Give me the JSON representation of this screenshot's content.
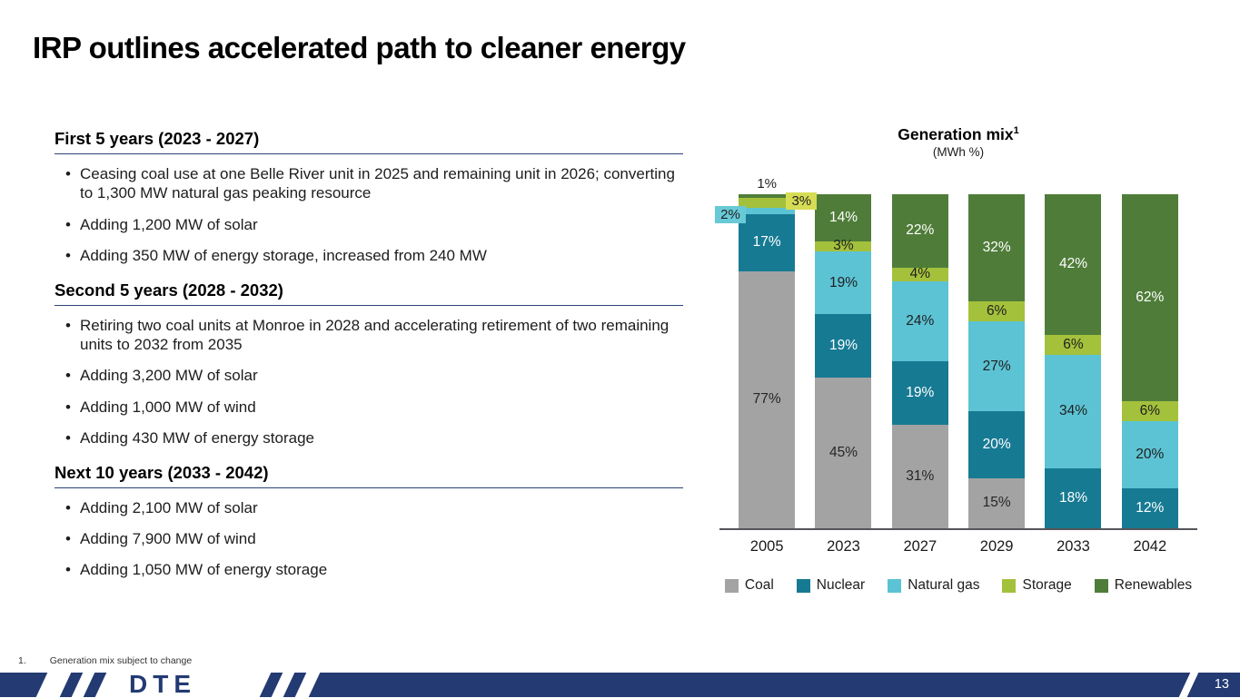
{
  "slide": {
    "title": "IRP outlines accelerated path to cleaner energy",
    "footnote_number": "1.",
    "footnote_text": "Generation mix subject to change",
    "logo_text": "DTE",
    "page_number": "13"
  },
  "sections": [
    {
      "heading": "First 5 years (2023 - 2027)",
      "bullets": [
        "Ceasing coal use at one Belle River unit in 2025 and remaining unit in 2026; converting to 1,300 MW natural gas peaking resource",
        "Adding 1,200 MW of solar",
        "Adding 350 MW of energy storage, increased from 240 MW"
      ]
    },
    {
      "heading": "Second 5 years (2028 - 2032)",
      "bullets": [
        "Retiring two coal units at Monroe in 2028 and accelerating retirement of two remaining units to 2032 from 2035",
        "Adding 3,200 MW of solar",
        "Adding 1,000 MW of wind",
        "Adding 430 MW of energy storage"
      ]
    },
    {
      "heading": "Next 10 years (2033 - 2042)",
      "bullets": [
        "Adding 2,100 MW of solar",
        "Adding 7,900 MW of wind",
        "Adding 1,050 MW of energy storage"
      ]
    }
  ],
  "chart_data": {
    "type": "bar",
    "stacked": true,
    "title": "Generation mix",
    "title_sup": "1",
    "subtitle": "(MWh %)",
    "categories": [
      "2005",
      "2023",
      "2027",
      "2029",
      "2033",
      "2042"
    ],
    "series": [
      {
        "name": "Coal",
        "color": "#a3a3a3",
        "label_color": "#262626",
        "values": [
          77,
          45,
          31,
          15,
          0,
          0
        ]
      },
      {
        "name": "Nuclear",
        "color": "#177a93",
        "label_color": "#ffffff",
        "values": [
          17,
          19,
          19,
          20,
          18,
          12
        ]
      },
      {
        "name": "Natural gas",
        "color": "#5cc3d4",
        "label_color": "#1f1f1f",
        "values": [
          2,
          19,
          24,
          27,
          34,
          20
        ]
      },
      {
        "name": "Storage",
        "color": "#a4c13c",
        "label_color": "#1f1f1f",
        "values": [
          3,
          3,
          4,
          6,
          6,
          6
        ]
      },
      {
        "name": "Renewables",
        "color": "#4f7d39",
        "label_color": "#ffffff",
        "values": [
          1,
          14,
          22,
          32,
          42,
          62
        ]
      }
    ],
    "ylim": [
      0,
      100
    ],
    "grid": false,
    "legend_position": "bottom",
    "callouts_2005": [
      {
        "series": "Natural gas",
        "text": "2%",
        "color": "#68cad7",
        "side": "left"
      },
      {
        "series": "Storage",
        "text": "3%",
        "color": "#d6dd55",
        "side": "right"
      },
      {
        "series": "Renewables",
        "text": "1%",
        "side": "above"
      }
    ]
  }
}
